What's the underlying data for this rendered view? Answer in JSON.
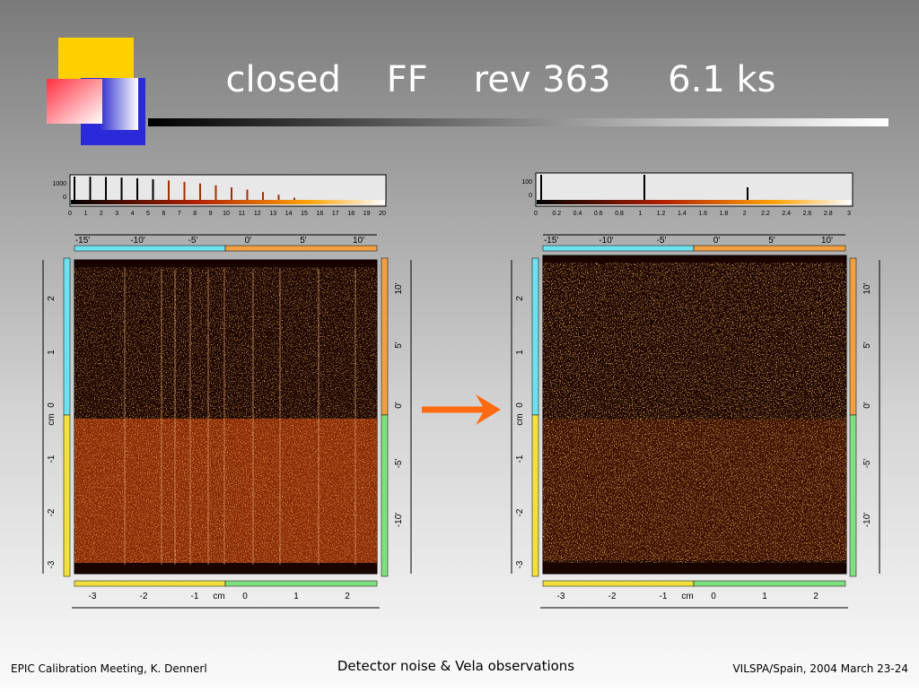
{
  "title": "closed    FF    rev 363     6.1 ks",
  "footer": {
    "left": "EPIC Calibration Meeting, K. Dennerl",
    "center": "Detector noise & Vela observations",
    "right": "VILSPA/Spain, 2004 March 23-24"
  },
  "panels": [
    {
      "histogram": {
        "y_labels": [
          "1000",
          "0"
        ],
        "x_labels": [
          "0",
          "1",
          "2",
          "3",
          "4",
          "5",
          "6",
          "7",
          "8",
          "9",
          "10",
          "11",
          "12",
          "13",
          "14",
          "15",
          "16",
          "17",
          "18",
          "19",
          "20"
        ]
      },
      "top_axis": [
        "-15'",
        "-10'",
        "-5'",
        "0'",
        "5'",
        "10'"
      ],
      "x_axis": [
        "-3",
        "-2",
        "-1",
        "cm",
        "0",
        "1",
        "2"
      ],
      "y_axis": [
        "-3",
        "-2",
        "-1",
        "cm",
        "0",
        "1",
        "2"
      ],
      "right_axis": [
        "10'",
        "5'",
        "0'",
        "-5'",
        "-10'"
      ]
    },
    {
      "histogram": {
        "y_labels": [
          "100",
          "0"
        ],
        "x_labels": [
          "0",
          "0.2",
          "0.4",
          "0.6",
          "0.8",
          "1",
          "1.2",
          "1.4",
          "1.6",
          "1.8",
          "2",
          "2.2",
          "2.4",
          "2.6",
          "2.8",
          "3"
        ]
      },
      "top_axis": [
        "-15'",
        "-10'",
        "-5'",
        "0'",
        "5'",
        "10'"
      ],
      "x_axis": [
        "-3",
        "-2",
        "-1",
        "cm",
        "0",
        "1",
        "2"
      ],
      "y_axis": [
        "-3",
        "-2",
        "-1",
        "cm",
        "0",
        "1",
        "2"
      ],
      "right_axis": [
        "10'",
        "5'",
        "0'",
        "-5'",
        "-10'"
      ]
    }
  ]
}
